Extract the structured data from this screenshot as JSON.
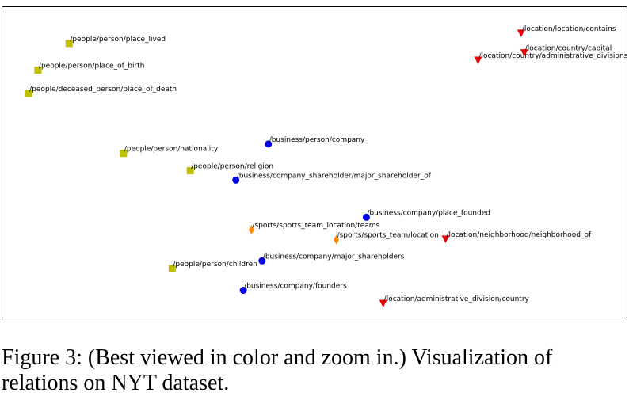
{
  "caption": "Figure 3: (Best viewed in color and zoom in.) Visualization of relations on NYT dataset.",
  "chart_data": {
    "type": "scatter",
    "title": "",
    "xlabel": "",
    "ylabel": "",
    "xlim": [
      0,
      100
    ],
    "ylim": [
      0,
      100
    ],
    "grid": false,
    "axis_ticks": false,
    "groups": [
      {
        "marker": "square",
        "color": "#bfbf00"
      },
      {
        "marker": "circle",
        "color": "#0000ee"
      },
      {
        "marker": "diamond",
        "color": "#ff8c00"
      },
      {
        "marker": "triangle-down",
        "color": "#ee0000"
      }
    ],
    "points": [
      {
        "label": "/people/person/place_lived",
        "x": 10.7,
        "y": 88.3,
        "group": 0
      },
      {
        "label": "/people/person/place_of_birth",
        "x": 5.7,
        "y": 79.7,
        "group": 0
      },
      {
        "label": "/people/deceased_person/place_of_death",
        "x": 4.2,
        "y": 72.2,
        "group": 0
      },
      {
        "label": "/people/person/nationality",
        "x": 19.4,
        "y": 52.9,
        "group": 0
      },
      {
        "label": "/people/person/religion",
        "x": 30.1,
        "y": 47.3,
        "group": 0
      },
      {
        "label": "/people/person/children",
        "x": 27.2,
        "y": 15.8,
        "group": 0
      },
      {
        "label": "/business/person/company",
        "x": 42.6,
        "y": 55.9,
        "group": 1
      },
      {
        "label": "/business/company_shareholder/major_shareholder_of",
        "x": 37.4,
        "y": 44.3,
        "group": 1
      },
      {
        "label": "/business/company/place_founded",
        "x": 58.3,
        "y": 32.3,
        "group": 1
      },
      {
        "label": "/business/company/major_shareholders",
        "x": 41.6,
        "y": 18.3,
        "group": 1
      },
      {
        "label": "/business/company/founders",
        "x": 38.6,
        "y": 8.8,
        "group": 1
      },
      {
        "label": "/sports/sports_team_location/teams",
        "x": 39.9,
        "y": 28.3,
        "group": 2
      },
      {
        "label": "/sports/sports_team/location",
        "x": 53.5,
        "y": 25.1,
        "group": 2
      },
      {
        "label": "/location/location/contains",
        "x": 83.1,
        "y": 91.6,
        "group": 3
      },
      {
        "label": "/location/country/capital",
        "x": 83.6,
        "y": 85.3,
        "group": 3
      },
      {
        "label": "/location/country/administrative_divisions",
        "x": 76.2,
        "y": 82.9,
        "group": 3
      },
      {
        "label": "/location/neighborhood/neighborhood_of",
        "x": 71.0,
        "y": 25.3,
        "group": 3
      },
      {
        "label": "/location/administrative_division/country",
        "x": 61.0,
        "y": 4.6,
        "group": 3
      }
    ]
  }
}
